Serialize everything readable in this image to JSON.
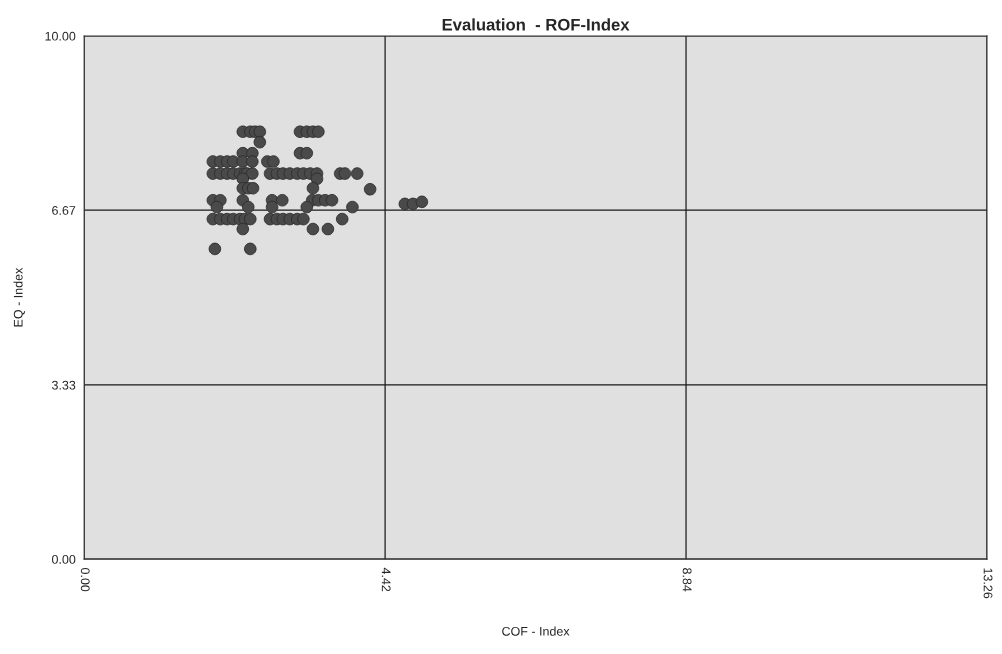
{
  "chart_data": {
    "type": "scatter",
    "title": "Evaluation  - ROF-Index",
    "xlabel": "COF - Index",
    "ylabel": "EQ - Index",
    "xlim": [
      0,
      13.26
    ],
    "ylim": [
      0,
      10
    ],
    "xticks": [
      {
        "value": 0,
        "label": "0.00"
      },
      {
        "value": 4.42,
        "label": "4.42"
      },
      {
        "value": 8.84,
        "label": "8.84"
      },
      {
        "value": 13.26,
        "label": "13.26"
      }
    ],
    "yticks": [
      {
        "value": 0,
        "label": "0.00"
      },
      {
        "value": 3.33,
        "label": "3.33"
      },
      {
        "value": 6.67,
        "label": "6.67"
      },
      {
        "value": 10,
        "label": "10.00"
      }
    ],
    "grid": true,
    "marker": "circle",
    "series": [
      {
        "color": "#4a4a4a",
        "x": [
          2.33,
          2.44,
          2.51,
          2.58,
          3.17,
          3.27,
          3.36,
          3.44,
          2.58,
          2.33,
          2.47,
          3.17,
          3.27,
          1.89,
          2.0,
          2.1,
          2.19,
          2.33,
          2.47,
          2.69,
          2.78,
          1.89,
          2.0,
          2.1,
          2.19,
          2.29,
          2.36,
          2.39,
          2.47,
          2.73,
          2.83,
          2.92,
          3.02,
          3.13,
          3.22,
          3.32,
          3.42,
          3.76,
          3.83,
          4.01,
          2.33,
          3.42,
          2.33,
          2.41,
          2.48,
          3.36,
          4.2,
          1.89,
          2.0,
          2.33,
          2.76,
          2.91,
          3.35,
          3.44,
          3.54,
          3.64,
          1.95,
          2.41,
          2.76,
          3.27,
          3.94,
          1.89,
          2.0,
          2.1,
          2.19,
          2.29,
          2.36,
          2.44,
          2.73,
          2.83,
          2.92,
          3.02,
          3.13,
          3.22,
          3.79,
          2.33,
          3.36,
          3.58,
          1.92,
          2.44,
          4.71,
          4.83,
          4.96
        ],
        "values": [
          8.17,
          8.17,
          8.17,
          8.17,
          8.17,
          8.17,
          8.17,
          8.17,
          7.97,
          7.76,
          7.76,
          7.76,
          7.76,
          7.6,
          7.6,
          7.6,
          7.6,
          7.6,
          7.6,
          7.6,
          7.6,
          7.37,
          7.37,
          7.37,
          7.37,
          7.37,
          7.37,
          7.37,
          7.37,
          7.37,
          7.37,
          7.37,
          7.37,
          7.37,
          7.37,
          7.37,
          7.37,
          7.37,
          7.37,
          7.37,
          7.27,
          7.27,
          7.09,
          7.09,
          7.09,
          7.09,
          7.07,
          6.86,
          6.86,
          6.86,
          6.86,
          6.86,
          6.86,
          6.86,
          6.86,
          6.86,
          6.73,
          6.73,
          6.73,
          6.73,
          6.73,
          6.5,
          6.5,
          6.5,
          6.5,
          6.5,
          6.5,
          6.5,
          6.5,
          6.5,
          6.5,
          6.5,
          6.5,
          6.5,
          6.5,
          6.31,
          6.31,
          6.31,
          5.93,
          5.93,
          6.79,
          6.79,
          6.83
        ]
      }
    ]
  }
}
